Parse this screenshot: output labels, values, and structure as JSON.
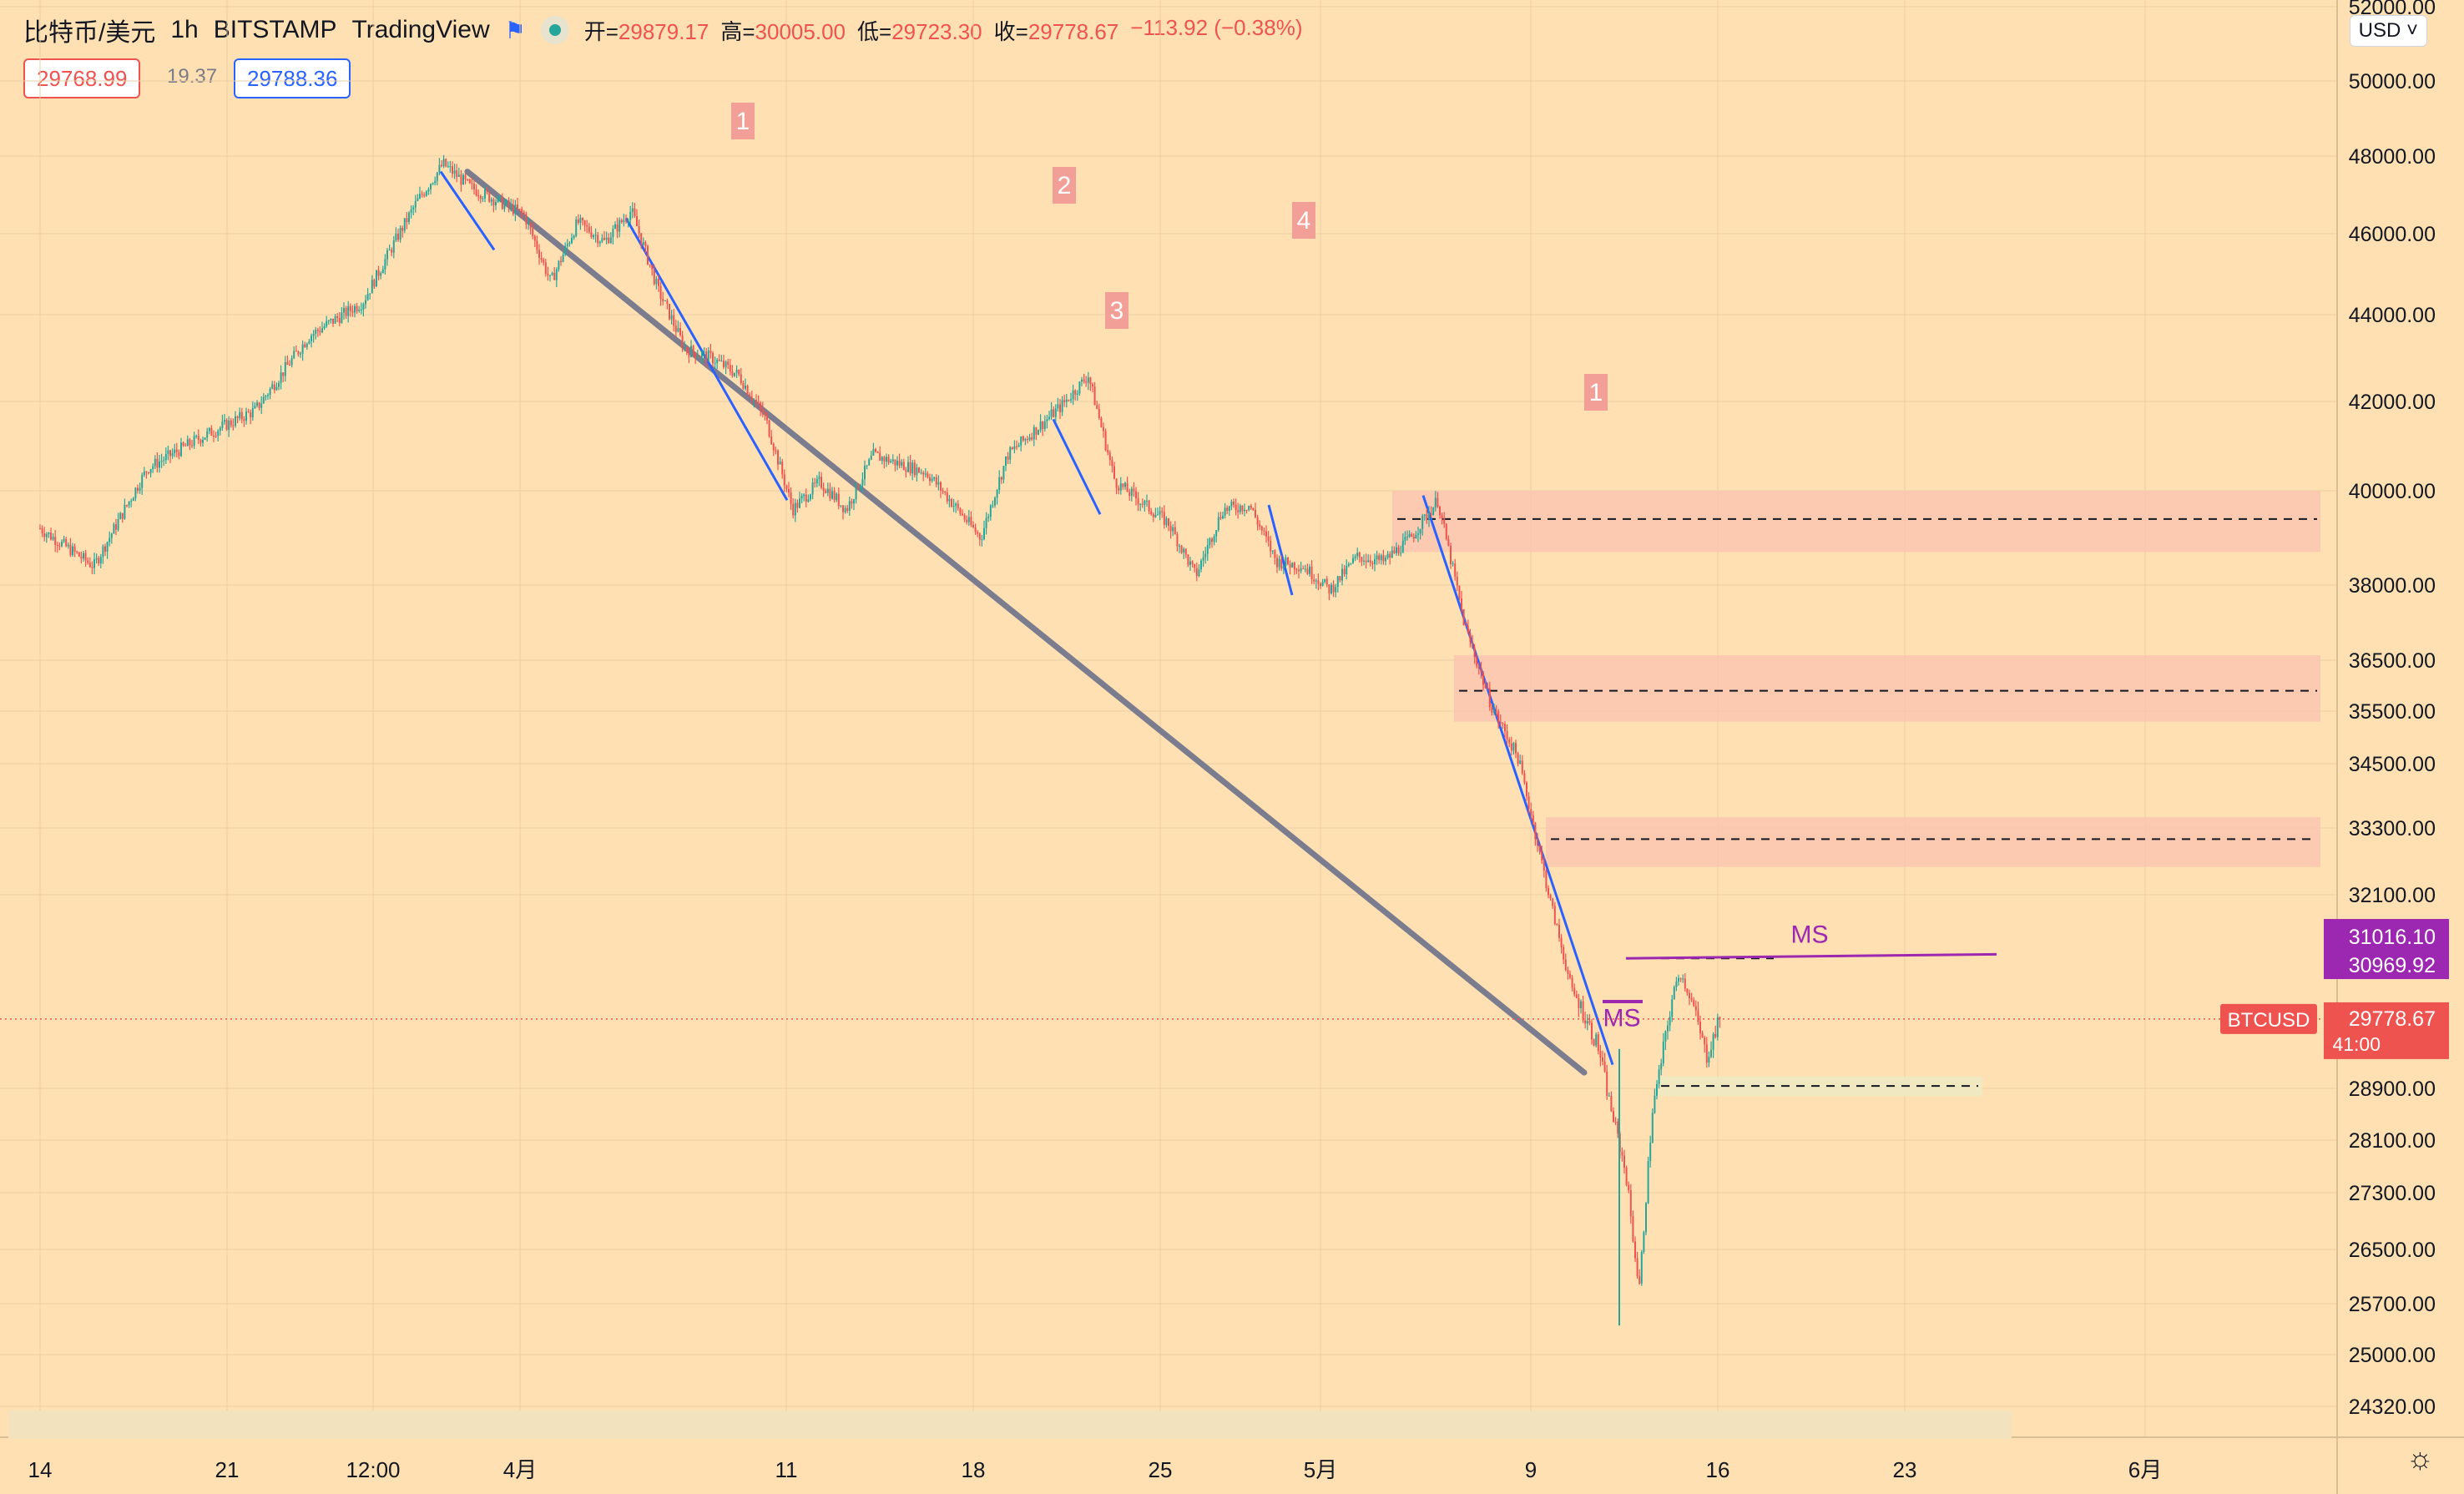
{
  "header": {
    "symbol": "比特币/美元",
    "interval": "1h",
    "exchange": "BITSTAMP",
    "source": "TradingView",
    "ohlc": {
      "open_label": "开=",
      "open": "29879.17",
      "high_label": "高=",
      "high": "30005.00",
      "low_label": "低=",
      "low": "29723.30",
      "close_label": "收=",
      "close": "29778.67",
      "change": "−113.92 (−0.38%)"
    }
  },
  "sell_price": "29768.99",
  "spread": "19.37",
  "buy_price": "29788.36",
  "currency_button": "USD",
  "colors": {
    "background": "#ffe0b3",
    "up": "#26a69a",
    "down": "#ef5350",
    "trend_blue": "#2962ff",
    "trend_gray": "#7b7d8f",
    "zone": "#fac6b0",
    "ms_purple": "#9c27b0",
    "wave_label_bg": "#f2a097"
  },
  "chart_data": {
    "type": "candlestick",
    "instrument": "BTCUSD",
    "timeframe": "1h",
    "x_tick_labels": [
      "14",
      "21",
      "12:00",
      "4月",
      "11",
      "18",
      "25",
      "5月",
      "9",
      "16",
      "23",
      "6月"
    ],
    "y_tick_labels": [
      "52000.00",
      "50000.00",
      "48000.00",
      "46000.00",
      "44000.00",
      "42000.00",
      "40000.00",
      "38000.00",
      "36500.00",
      "35500.00",
      "34500.00",
      "33300.00",
      "32100.00",
      "28900.00",
      "28100.00",
      "27300.00",
      "26500.00",
      "25700.00",
      "25000.00",
      "24320.00"
    ],
    "price_series": [
      [
        "03-14",
        39200
      ],
      [
        "03-16",
        38400
      ],
      [
        "03-18",
        40500
      ],
      [
        "03-20",
        41200
      ],
      [
        "03-22",
        41800
      ],
      [
        "03-24",
        43500
      ],
      [
        "03-26",
        44300
      ],
      [
        "03-28",
        46800
      ],
      [
        "03-29",
        47800
      ],
      [
        "03-30",
        47200
      ],
      [
        "04-01",
        46500
      ],
      [
        "04-02",
        44800
      ],
      [
        "04-03",
        46300
      ],
      [
        "04-04",
        45800
      ],
      [
        "04-05",
        46600
      ],
      [
        "04-06",
        44600
      ],
      [
        "04-07",
        43200
      ],
      [
        "04-08",
        43000
      ],
      [
        "04-09",
        42600
      ],
      [
        "04-10",
        41600
      ],
      [
        "04-11",
        39600
      ],
      [
        "04-12",
        40200
      ],
      [
        "04-13",
        39600
      ],
      [
        "04-14",
        40800
      ],
      [
        "04-16",
        40400
      ],
      [
        "04-18",
        39000
      ],
      [
        "04-19",
        40800
      ],
      [
        "04-21",
        41900
      ],
      [
        "04-22",
        42600
      ],
      [
        "04-23",
        40200
      ],
      [
        "04-25",
        39300
      ],
      [
        "04-26",
        38200
      ],
      [
        "04-27",
        39600
      ],
      [
        "04-28",
        39700
      ],
      [
        "04-29",
        38500
      ],
      [
        "04-30",
        38400
      ],
      [
        "05-01",
        37900
      ],
      [
        "05-02",
        38600
      ],
      [
        "05-03",
        38500
      ],
      [
        "05-04",
        39000
      ],
      [
        "05-05",
        39800
      ],
      [
        "05-06",
        37200
      ],
      [
        "05-07",
        35600
      ],
      [
        "05-08",
        34600
      ],
      [
        "05-09",
        32400
      ],
      [
        "05-10",
        30200
      ],
      [
        "05-11",
        29400
      ],
      [
        "05-12",
        27600
      ],
      [
        "05-12.5",
        25900
      ],
      [
        "05-13",
        28600
      ],
      [
        "05-14",
        30600
      ],
      [
        "05-15",
        29300
      ],
      [
        "05-15.5",
        29778.67
      ]
    ],
    "last_price": 29778.67,
    "last_price_label": "BTCUSD",
    "last_price_time": "41:00",
    "ms_level_prices": [
      "31016.10",
      "30969.92"
    ],
    "supply_zones": [
      {
        "low": 38700,
        "high": 40000,
        "level": 39400
      },
      {
        "low": 35300,
        "high": 36600,
        "level": 35900
      },
      {
        "low": 32600,
        "high": 33500,
        "level": 33100
      }
    ],
    "annotations": [
      {
        "text": "1"
      },
      {
        "text": "2"
      },
      {
        "text": "3"
      },
      {
        "text": "4"
      },
      {
        "text": "1"
      },
      {
        "text": "MS"
      },
      {
        "text": "MS"
      }
    ]
  }
}
